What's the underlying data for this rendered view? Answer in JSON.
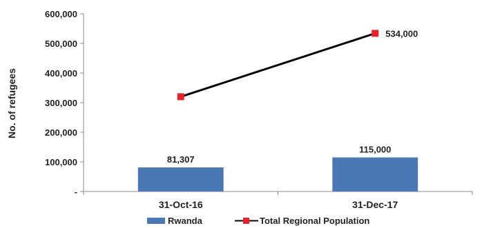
{
  "chart_data": {
    "type": "bar",
    "categories": [
      "31-Oct-16",
      "31-Dec-17"
    ],
    "series": [
      {
        "name": "Rwanda",
        "type": "bar",
        "values": [
          81307,
          115000
        ],
        "labels": [
          "81,307",
          "115,000"
        ],
        "color": "#4a78b5"
      },
      {
        "name": "Total Regional Population",
        "type": "line",
        "values": [
          320000,
          534000
        ],
        "labels": [
          "",
          "534,000"
        ],
        "color": "#e8202a",
        "line_color": "#000000"
      }
    ],
    "ylabel": "No. of refugees",
    "ylim": [
      0,
      600000
    ],
    "yticks": [
      0,
      100000,
      200000,
      300000,
      400000,
      500000,
      600000
    ],
    "ytick_labels": [
      "-",
      "100,000",
      "200,000",
      "300,000",
      "400,000",
      "500,000",
      "600,000"
    ],
    "grid": false,
    "legend": "bottom"
  }
}
